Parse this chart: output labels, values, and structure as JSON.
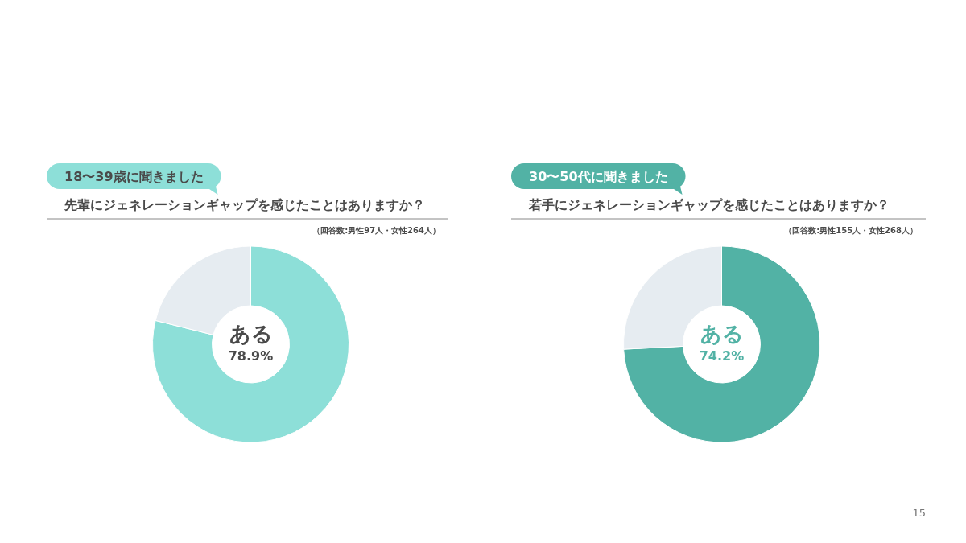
{
  "chart_data": [
    {
      "type": "donut",
      "title": "18〜39歳に聞きました",
      "subtitle": "先輩にジェネレーションギャップを感じたことはありますか？",
      "annotations": [
        "（回答数:男性97人・女性264人）"
      ],
      "categories": [
        "ある",
        null
      ],
      "values": [
        78.9,
        21.1
      ],
      "colors": [
        "#8ddfd8",
        "#e6ecf1"
      ],
      "value_labels": [
        "78.9%",
        null
      ]
    },
    {
      "type": "donut",
      "title": "30〜50代に聞きました",
      "subtitle": "若手にジェネレーションギャップを感じたことはありますか？",
      "annotations": [
        "（回答数:男性155人・女性268人）",
        "15"
      ],
      "categories": [
        "ある",
        null
      ],
      "values": [
        74.2,
        25.8
      ],
      "colors": [
        "#52b2a5",
        "#e6ecf1"
      ],
      "value_labels": [
        "74.2%",
        null
      ]
    }
  ]
}
